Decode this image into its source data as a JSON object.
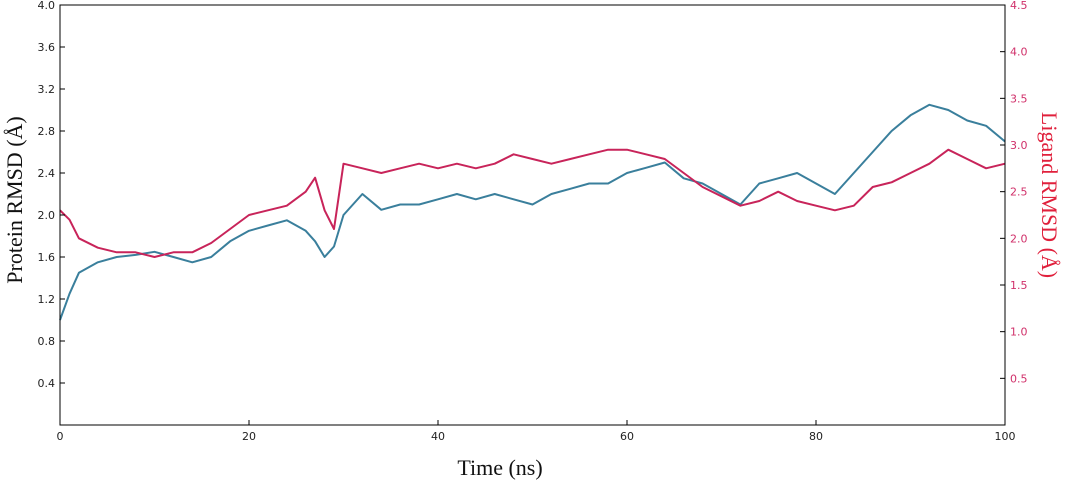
{
  "chart_data": {
    "type": "line",
    "xlabel": "Time (ns)",
    "ylabel_left": "Protein RMSD (Å)",
    "ylabel_right": "Ligand RMSD (Å)",
    "xlim": [
      0,
      100
    ],
    "ylim_left": [
      0,
      4.0
    ],
    "ylim_right": [
      0,
      4.5
    ],
    "x_ticks": [
      "0",
      "20",
      "40",
      "60",
      "80",
      "100"
    ],
    "y_left_ticks": [
      "0.4",
      "0.8",
      "1.2",
      "1.6",
      "2.0",
      "2.4",
      "2.8",
      "3.2",
      "3.6",
      "4.0"
    ],
    "y_right_ticks": [
      "0.5",
      "1.0",
      "1.5",
      "2.0",
      "2.5",
      "3.0",
      "3.5",
      "4.0",
      "4.5"
    ],
    "grid": false,
    "colors": {
      "protein": "#3a7f9c",
      "ligand": "#c8245a",
      "right_axis": "#d0306a",
      "right_title": "#e0203c"
    },
    "series": [
      {
        "axis": "left",
        "x": [
          0,
          1,
          2,
          4,
          6,
          8,
          10,
          12,
          14,
          16,
          18,
          20,
          22,
          24,
          26,
          27,
          28,
          29,
          30,
          32,
          34,
          36,
          38,
          40,
          42,
          44,
          46,
          48,
          50,
          52,
          54,
          56,
          58,
          60,
          62,
          64,
          66,
          68,
          70,
          72,
          74,
          76,
          78,
          80,
          82,
          84,
          86,
          88,
          90,
          92,
          94,
          96,
          98,
          100
        ],
        "values": [
          1.0,
          1.25,
          1.45,
          1.55,
          1.6,
          1.62,
          1.65,
          1.6,
          1.55,
          1.6,
          1.75,
          1.85,
          1.9,
          1.95,
          1.85,
          1.75,
          1.6,
          1.7,
          2.0,
          2.2,
          2.05,
          2.1,
          2.1,
          2.15,
          2.2,
          2.15,
          2.2,
          2.15,
          2.1,
          2.2,
          2.25,
          2.3,
          2.3,
          2.4,
          2.45,
          2.5,
          2.35,
          2.3,
          2.2,
          2.1,
          2.3,
          2.35,
          2.4,
          2.3,
          2.2,
          2.4,
          2.6,
          2.8,
          2.95,
          3.05,
          3.0,
          2.9,
          2.85,
          2.7
        ]
      },
      {
        "axis": "right",
        "x": [
          0,
          1,
          2,
          4,
          6,
          8,
          10,
          12,
          14,
          16,
          18,
          20,
          22,
          24,
          26,
          27,
          28,
          29,
          30,
          32,
          34,
          36,
          38,
          40,
          42,
          44,
          46,
          48,
          50,
          52,
          54,
          56,
          58,
          60,
          62,
          64,
          66,
          68,
          70,
          72,
          74,
          76,
          78,
          80,
          82,
          84,
          86,
          88,
          90,
          92,
          94,
          96,
          98,
          100
        ],
        "values": [
          2.3,
          2.2,
          2.0,
          1.9,
          1.85,
          1.85,
          1.8,
          1.85,
          1.85,
          1.95,
          2.1,
          2.25,
          2.3,
          2.35,
          2.5,
          2.65,
          2.3,
          2.1,
          2.8,
          2.75,
          2.7,
          2.75,
          2.8,
          2.75,
          2.8,
          2.75,
          2.8,
          2.9,
          2.85,
          2.8,
          2.85,
          2.9,
          2.95,
          2.95,
          2.9,
          2.85,
          2.7,
          2.55,
          2.45,
          2.35,
          2.4,
          2.5,
          2.4,
          2.35,
          2.3,
          2.35,
          2.55,
          2.6,
          2.7,
          2.8,
          2.95,
          2.85,
          2.75,
          2.8
        ]
      }
    ]
  }
}
